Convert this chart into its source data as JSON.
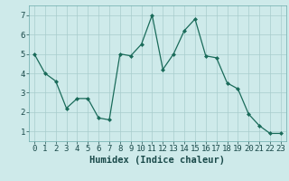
{
  "x": [
    0,
    1,
    2,
    3,
    4,
    5,
    6,
    7,
    8,
    9,
    10,
    11,
    12,
    13,
    14,
    15,
    16,
    17,
    18,
    19,
    20,
    21,
    22,
    23
  ],
  "y": [
    5.0,
    4.0,
    3.6,
    2.2,
    2.7,
    2.7,
    1.7,
    1.6,
    5.0,
    4.9,
    5.5,
    7.0,
    4.2,
    5.0,
    6.2,
    6.8,
    4.9,
    4.8,
    3.5,
    3.2,
    1.9,
    1.3,
    0.9,
    0.9
  ],
  "line_color": "#1a6b5a",
  "marker": "D",
  "marker_size": 2.0,
  "bg_color": "#ceeaea",
  "grid_color": "#a8cccc",
  "xlabel": "Humidex (Indice chaleur)",
  "xlabel_fontsize": 7.5,
  "ylabel_ticks": [
    1,
    2,
    3,
    4,
    5,
    6,
    7
  ],
  "xlim": [
    -0.5,
    23.5
  ],
  "ylim": [
    0.5,
    7.5
  ],
  "xtick_labels": [
    "0",
    "1",
    "2",
    "3",
    "4",
    "5",
    "6",
    "7",
    "8",
    "9",
    "10",
    "11",
    "12",
    "13",
    "14",
    "15",
    "16",
    "17",
    "18",
    "19",
    "20",
    "21",
    "22",
    "23"
  ],
  "tick_fontsize": 6.5
}
